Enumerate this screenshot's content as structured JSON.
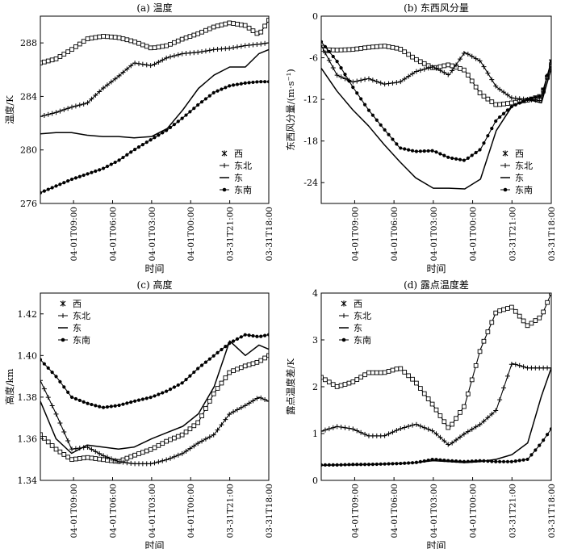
{
  "chart_data": [
    {
      "type": "line",
      "title": "(a) 温度",
      "xlabel": "时间",
      "ylabel": "温度/K",
      "ylim": [
        276,
        290
      ],
      "yticks": [
        276,
        280,
        284,
        288
      ],
      "xtick_labels": [
        "04-01T09:00",
        "04-01T06:00",
        "04-01T03:00",
        "04-01T00:00",
        "03-31T21:00",
        "03-31T18:00"
      ],
      "xtick_index": [
        0.85,
        1.85,
        2.85,
        3.85,
        4.85,
        5.85
      ],
      "x_span": [
        0,
        5.85
      ],
      "legend_position": "right",
      "series": [
        {
          "name": "西",
          "marker": "square",
          "x": [
            0,
            0.4,
            0.8,
            1.2,
            1.6,
            2.0,
            2.4,
            2.85,
            3.25,
            3.65,
            4.05,
            4.45,
            4.85,
            5.25,
            5.6,
            5.85
          ],
          "values": [
            286.5,
            286.8,
            287.5,
            288.3,
            288.5,
            288.4,
            288.1,
            287.6,
            287.8,
            288.3,
            288.7,
            289.2,
            289.5,
            289.3,
            288.6,
            289.7
          ]
        },
        {
          "name": "东北",
          "marker": "plus",
          "x": [
            0,
            0.4,
            0.8,
            1.2,
            1.6,
            2.0,
            2.4,
            2.85,
            3.25,
            3.65,
            4.05,
            4.45,
            4.85,
            5.25,
            5.6,
            5.85
          ],
          "values": [
            282.5,
            282.8,
            283.2,
            283.5,
            284.6,
            285.5,
            286.5,
            286.3,
            286.9,
            287.2,
            287.3,
            287.5,
            287.6,
            287.8,
            287.9,
            288.0
          ]
        },
        {
          "name": "东",
          "marker": "none",
          "x": [
            0,
            0.4,
            0.8,
            1.2,
            1.6,
            2.0,
            2.4,
            2.85,
            3.25,
            3.65,
            4.05,
            4.45,
            4.85,
            5.25,
            5.6,
            5.85
          ],
          "values": [
            281.2,
            281.3,
            281.3,
            281.1,
            281.0,
            281.0,
            280.9,
            281.0,
            281.6,
            283.0,
            284.6,
            285.6,
            286.2,
            286.2,
            287.2,
            287.5
          ]
        },
        {
          "name": "东南",
          "marker": "circle",
          "x": [
            0,
            0.4,
            0.8,
            1.2,
            1.6,
            2.0,
            2.4,
            2.85,
            3.25,
            3.65,
            4.05,
            4.45,
            4.85,
            5.25,
            5.6,
            5.85
          ],
          "values": [
            276.8,
            277.3,
            277.8,
            278.2,
            278.6,
            279.2,
            280.0,
            280.8,
            281.5,
            282.4,
            283.4,
            284.3,
            284.8,
            285.0,
            285.1,
            285.1
          ]
        }
      ]
    },
    {
      "type": "line",
      "title": "(b) 东西风分量",
      "xlabel": "时间",
      "ylabel": "东西风分量/(m·s⁻¹)",
      "ylim": [
        -27,
        0
      ],
      "yticks": [
        0,
        -6,
        -12,
        -18,
        -24
      ],
      "xtick_labels": [
        "04-01T09:00",
        "04-01T06:00",
        "04-01T03:00",
        "04-01T00:00",
        "03-31T21:00",
        "03-31T18:00"
      ],
      "xtick_index": [
        0.85,
        1.85,
        2.85,
        3.85,
        4.85,
        5.85
      ],
      "x_span": [
        0,
        5.85
      ],
      "legend_position": "right",
      "series": [
        {
          "name": "西",
          "marker": "square",
          "x": [
            0,
            0.4,
            0.8,
            1.2,
            1.6,
            2.0,
            2.4,
            2.85,
            3.25,
            3.65,
            4.05,
            4.45,
            4.85,
            5.25,
            5.6,
            5.85
          ],
          "values": [
            -4.8,
            -4.9,
            -4.8,
            -4.5,
            -4.3,
            -4.7,
            -6.2,
            -7.5,
            -7.0,
            -7.8,
            -11.2,
            -12.8,
            -12.5,
            -12.1,
            -11.5,
            -7.0
          ]
        },
        {
          "name": "东北",
          "marker": "plus",
          "x": [
            0,
            0.4,
            0.8,
            1.2,
            1.6,
            2.0,
            2.4,
            2.85,
            3.25,
            3.65,
            4.05,
            4.45,
            4.85,
            5.25,
            5.6,
            5.85
          ],
          "values": [
            -4.2,
            -8.5,
            -9.5,
            -9.0,
            -9.8,
            -9.5,
            -8.0,
            -7.3,
            -8.5,
            -5.2,
            -6.5,
            -10.2,
            -11.8,
            -12.0,
            -12.2,
            -6.3
          ]
        },
        {
          "name": "东",
          "marker": "none",
          "x": [
            0,
            0.4,
            0.8,
            1.2,
            1.6,
            2.0,
            2.4,
            2.85,
            3.25,
            3.65,
            4.05,
            4.45,
            4.85,
            5.25,
            5.6,
            5.85
          ],
          "values": [
            -7.5,
            -10.8,
            -13.5,
            -15.8,
            -18.5,
            -21.0,
            -23.3,
            -24.8,
            -24.8,
            -24.9,
            -23.5,
            -16.5,
            -13.0,
            -12.0,
            -12.5,
            -7.5
          ]
        },
        {
          "name": "东南",
          "marker": "circle",
          "x": [
            0,
            0.4,
            0.8,
            1.2,
            1.6,
            2.0,
            2.4,
            2.85,
            3.25,
            3.65,
            4.05,
            4.45,
            4.85,
            5.25,
            5.6,
            5.85
          ],
          "values": [
            -3.7,
            -6.5,
            -10.2,
            -13.5,
            -16.3,
            -19.0,
            -19.5,
            -19.4,
            -20.4,
            -20.8,
            -19.2,
            -15.0,
            -13.0,
            -12.0,
            -11.5,
            -6.5
          ]
        }
      ]
    },
    {
      "type": "line",
      "title": "(c) 高度",
      "xlabel": "时间",
      "ylabel": "高度/km",
      "ylim": [
        1.34,
        1.43
      ],
      "yticks": [
        1.34,
        1.36,
        1.38,
        1.4,
        1.42
      ],
      "ytick_labels": [
        "1.34",
        "1.36",
        "1.38",
        "1.40",
        "1.42"
      ],
      "xtick_labels": [
        "04-01T09:00",
        "04-01T06:00",
        "04-01T03:00",
        "04-01T00:00",
        "03-31T21:00",
        "03-31T18:00"
      ],
      "xtick_index": [
        0.85,
        1.85,
        2.85,
        3.85,
        4.85,
        5.85
      ],
      "x_span": [
        0,
        5.85
      ],
      "legend_position": "top-left",
      "series": [
        {
          "name": "西",
          "marker": "square",
          "x": [
            0,
            0.4,
            0.8,
            1.2,
            1.6,
            2.0,
            2.4,
            2.85,
            3.25,
            3.65,
            4.05,
            4.45,
            4.85,
            5.25,
            5.6,
            5.85
          ],
          "values": [
            1.362,
            1.355,
            1.35,
            1.351,
            1.35,
            1.349,
            1.352,
            1.355,
            1.359,
            1.362,
            1.368,
            1.382,
            1.392,
            1.395,
            1.397,
            1.4
          ]
        },
        {
          "name": "东北",
          "marker": "plus",
          "x": [
            0,
            0.4,
            0.8,
            1.2,
            1.6,
            2.0,
            2.4,
            2.85,
            3.25,
            3.65,
            4.05,
            4.45,
            4.85,
            5.25,
            5.6,
            5.85
          ],
          "values": [
            1.388,
            1.372,
            1.355,
            1.356,
            1.352,
            1.349,
            1.348,
            1.348,
            1.35,
            1.353,
            1.358,
            1.362,
            1.372,
            1.376,
            1.38,
            1.378
          ]
        },
        {
          "name": "东",
          "marker": "none",
          "x": [
            0,
            0.4,
            0.8,
            1.2,
            1.6,
            2.0,
            2.4,
            2.85,
            3.25,
            3.65,
            4.05,
            4.45,
            4.85,
            5.25,
            5.6,
            5.85
          ],
          "values": [
            1.378,
            1.36,
            1.353,
            1.357,
            1.356,
            1.355,
            1.356,
            1.36,
            1.363,
            1.366,
            1.372,
            1.385,
            1.407,
            1.4,
            1.405,
            1.403
          ]
        },
        {
          "name": "东南",
          "marker": "circle",
          "x": [
            0,
            0.4,
            0.8,
            1.2,
            1.6,
            2.0,
            2.4,
            2.85,
            3.25,
            3.65,
            4.05,
            4.45,
            4.85,
            5.25,
            5.6,
            5.85
          ],
          "values": [
            1.398,
            1.39,
            1.38,
            1.377,
            1.375,
            1.376,
            1.378,
            1.38,
            1.383,
            1.387,
            1.394,
            1.4,
            1.406,
            1.41,
            1.409,
            1.41
          ]
        }
      ]
    },
    {
      "type": "line",
      "title": "(d) 露点温度差",
      "xlabel": "时间",
      "ylabel": "露点温度差/K",
      "ylim": [
        0,
        4
      ],
      "yticks": [
        0,
        1,
        2,
        3,
        4
      ],
      "xtick_labels": [
        "04-01T09:00",
        "04-01T06:00",
        "04-01T03:00",
        "04-01T00:00",
        "03-31T21:00",
        "03-31T18:00"
      ],
      "xtick_index": [
        0.85,
        1.85,
        2.85,
        3.85,
        4.85,
        5.85
      ],
      "x_span": [
        0,
        5.85
      ],
      "legend_position": "top-left",
      "series": [
        {
          "name": "西",
          "marker": "square",
          "x": [
            0,
            0.4,
            0.8,
            1.2,
            1.6,
            2.0,
            2.4,
            2.85,
            3.25,
            3.65,
            4.05,
            4.45,
            4.85,
            5.25,
            5.6,
            5.85
          ],
          "values": [
            2.2,
            2.0,
            2.1,
            2.3,
            2.3,
            2.4,
            2.1,
            1.6,
            1.1,
            1.6,
            2.8,
            3.6,
            3.7,
            3.3,
            3.5,
            4.0
          ]
        },
        {
          "name": "东北",
          "marker": "plus",
          "x": [
            0,
            0.4,
            0.8,
            1.2,
            1.6,
            2.0,
            2.4,
            2.85,
            3.25,
            3.65,
            4.05,
            4.45,
            4.85,
            5.25,
            5.6,
            5.85
          ],
          "values": [
            1.05,
            1.15,
            1.1,
            0.95,
            0.95,
            1.1,
            1.2,
            1.05,
            0.75,
            1.0,
            1.2,
            1.5,
            2.5,
            2.4,
            2.4,
            2.4
          ]
        },
        {
          "name": "东",
          "marker": "none",
          "x": [
            0,
            0.4,
            0.8,
            1.2,
            1.6,
            2.0,
            2.4,
            2.85,
            3.25,
            3.65,
            4.05,
            4.45,
            4.85,
            5.25,
            5.6,
            5.85
          ],
          "values": [
            0.32,
            0.33,
            0.33,
            0.34,
            0.35,
            0.36,
            0.38,
            0.42,
            0.4,
            0.38,
            0.4,
            0.45,
            0.55,
            0.8,
            1.8,
            2.4
          ]
        },
        {
          "name": "东南",
          "marker": "circle",
          "x": [
            0,
            0.4,
            0.8,
            1.2,
            1.6,
            2.0,
            2.4,
            2.85,
            3.25,
            3.65,
            4.05,
            4.45,
            4.85,
            5.25,
            5.6,
            5.85
          ],
          "values": [
            0.33,
            0.33,
            0.34,
            0.34,
            0.35,
            0.36,
            0.38,
            0.45,
            0.42,
            0.4,
            0.42,
            0.4,
            0.4,
            0.45,
            0.8,
            1.1
          ]
        }
      ]
    }
  ]
}
